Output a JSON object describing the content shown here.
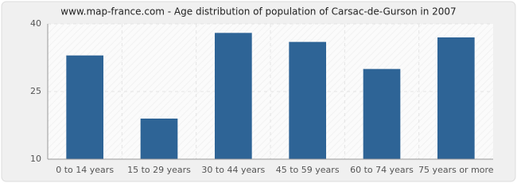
{
  "chart_data": {
    "type": "bar",
    "title": "www.map-france.com - Age distribution of population of Carsac-de-Gurson in 2007",
    "categories": [
      "0 to 14 years",
      "15 to 29 years",
      "30 to 44 years",
      "45 to 59 years",
      "60 to 74 years",
      "75 years or more"
    ],
    "values": [
      33,
      19,
      38,
      36,
      30,
      37
    ],
    "color": "#2e6496",
    "ylim": [
      10,
      40
    ],
    "yticks": [
      10,
      25,
      40
    ],
    "grid": true
  }
}
